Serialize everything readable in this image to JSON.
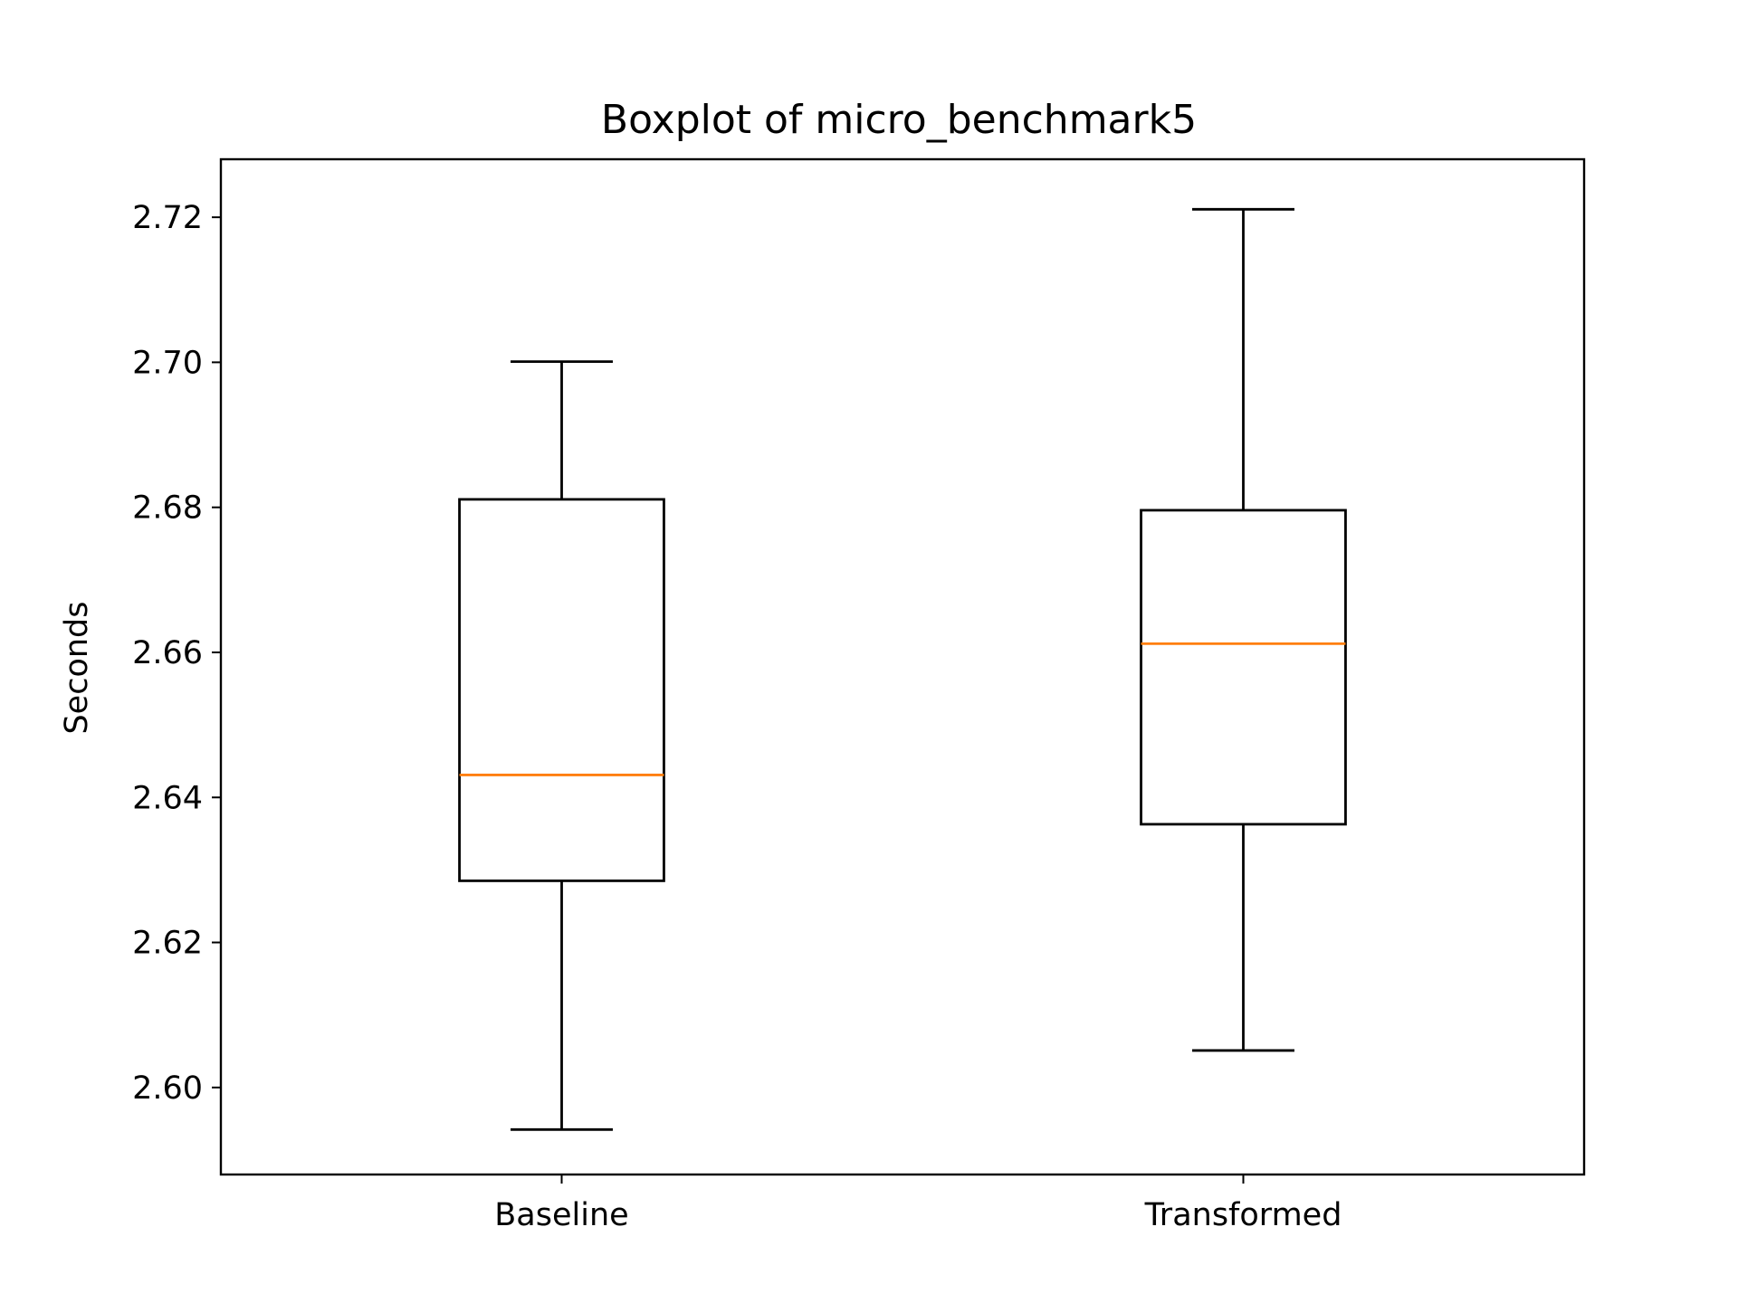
{
  "chart_data": {
    "type": "boxplot",
    "title": "Boxplot of micro_benchmark5",
    "xlabel": "",
    "ylabel": "Seconds",
    "ylim": [
      2.588,
      2.728
    ],
    "yticks": [
      2.6,
      2.62,
      2.64,
      2.66,
      2.68,
      2.7,
      2.72
    ],
    "ytick_labels": [
      "2.60",
      "2.62",
      "2.64",
      "2.66",
      "2.68",
      "2.70",
      "2.72"
    ],
    "categories": [
      "Baseline",
      "Transformed"
    ],
    "boxes": [
      {
        "category": "Baseline",
        "whisker_low": 2.5942,
        "q1": 2.6285,
        "median": 2.6431,
        "q3": 2.6811,
        "whisker_high": 2.7001
      },
      {
        "category": "Transformed",
        "whisker_low": 2.6051,
        "q1": 2.6363,
        "median": 2.6612,
        "q3": 2.6796,
        "whisker_high": 2.7211
      }
    ],
    "grid": false,
    "colors": {
      "box": "#000000",
      "median": "#ff7f0e",
      "axes": "#000000"
    }
  }
}
